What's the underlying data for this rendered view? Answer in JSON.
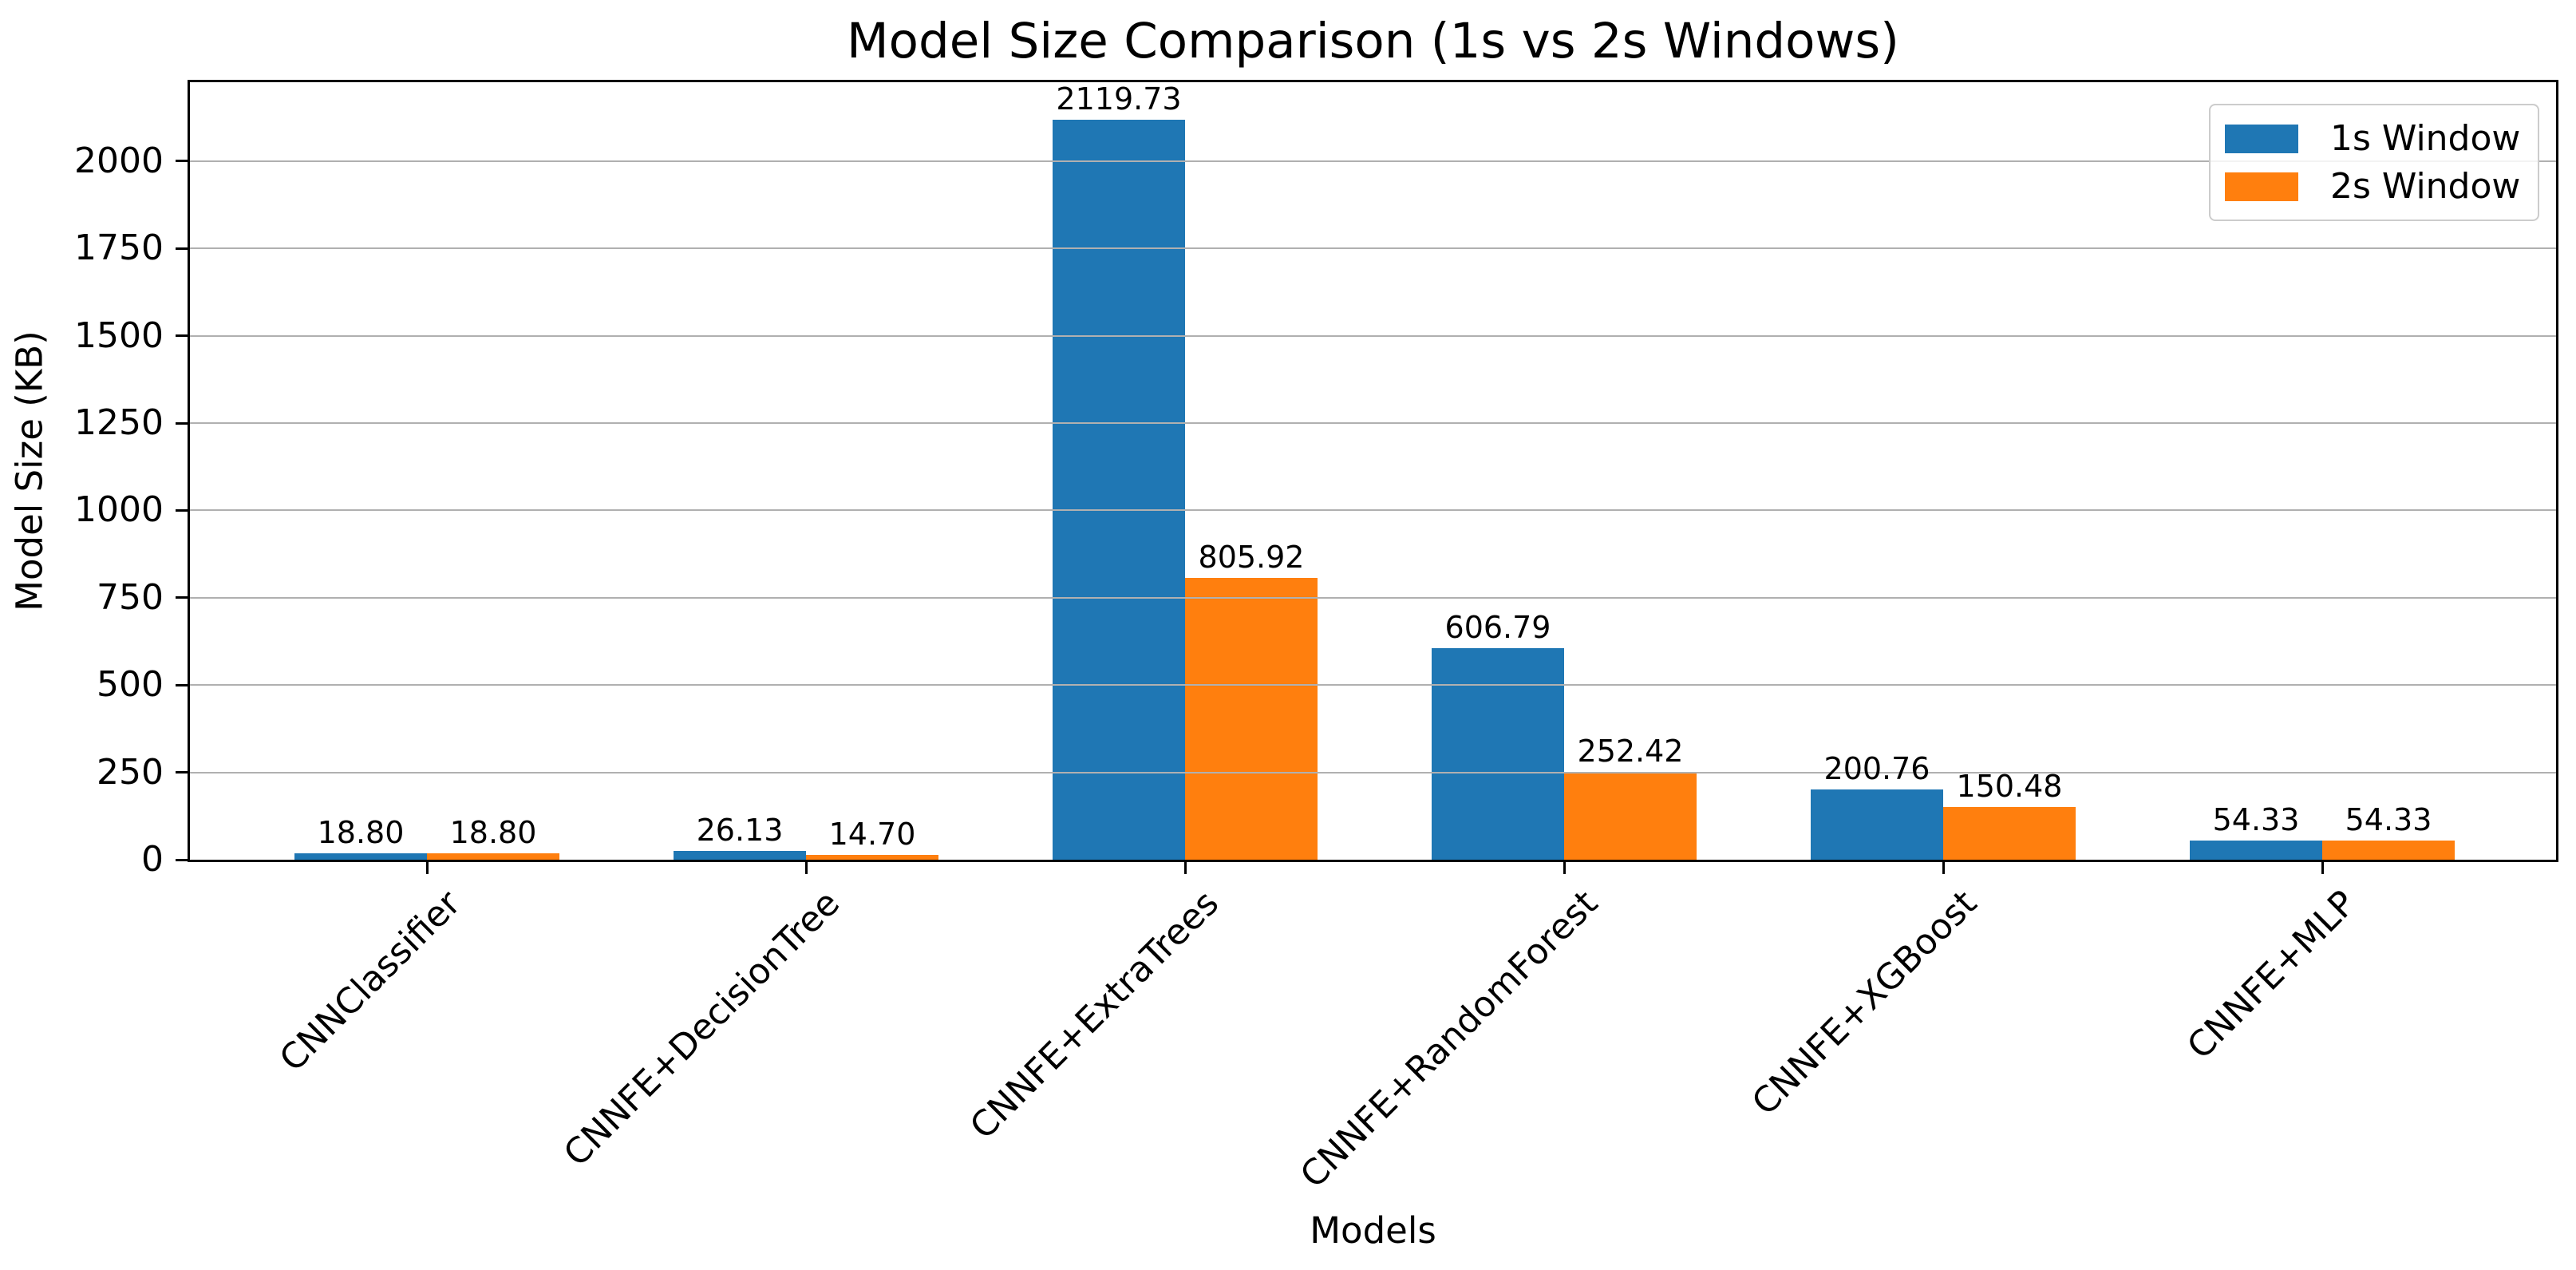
{
  "figure": {
    "background": "#ffffff"
  },
  "chart_data": {
    "type": "bar",
    "title": "Model Size Comparison (1s vs 2s Windows)",
    "xlabel": "Models",
    "ylabel": "Model Size (KB)",
    "categories": [
      "CNNClassifier",
      "CNNFE+DecisionTree",
      "CNNFE+ExtraTrees",
      "CNNFE+RandomForest",
      "CNNFE+XGBoost",
      "CNNFE+MLP"
    ],
    "series": [
      {
        "name": "1s Window",
        "color": "#1f77b4",
        "values": [
          18.8,
          26.13,
          2119.73,
          606.79,
          200.76,
          54.33
        ]
      },
      {
        "name": "2s Window",
        "color": "#ff7f0e",
        "values": [
          18.8,
          14.7,
          805.92,
          252.42,
          150.48,
          54.33
        ]
      }
    ],
    "value_label_decimals": 2,
    "yticks": [
      0,
      250,
      500,
      750,
      1000,
      1250,
      1500,
      1750,
      2000
    ],
    "ylim": [
      0,
      2226
    ],
    "grid": "horizontal",
    "grid_color": "#b0b0b0",
    "axis_color": "#000000",
    "legend": {
      "position": "upper right",
      "labels": [
        "1s Window",
        "2s Window"
      ]
    }
  }
}
